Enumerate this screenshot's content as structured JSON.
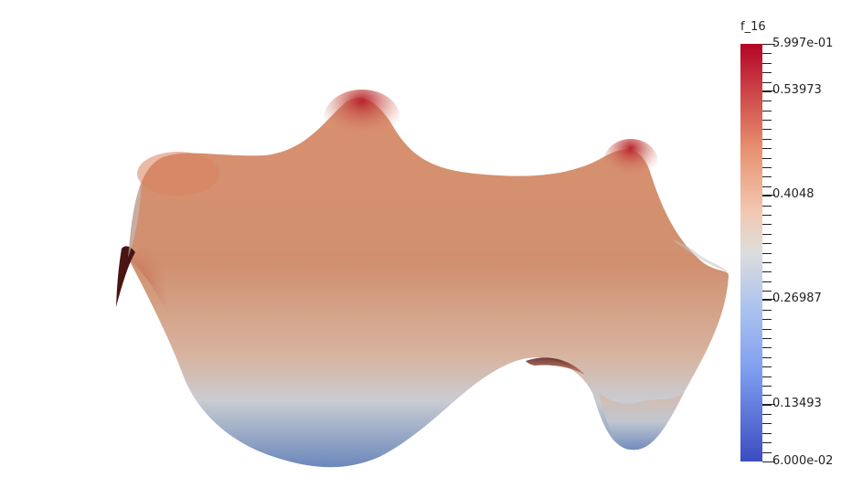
{
  "viewer": {
    "background": "#ffffff"
  },
  "scalar_bar": {
    "title": "f_16",
    "min": 0.06,
    "max": 0.5997,
    "labels": [
      {
        "text": "5.997e-01",
        "value": 0.5997
      },
      {
        "text": "0.53973",
        "value": 0.53973
      },
      {
        "text": "0.4048",
        "value": 0.4048
      },
      {
        "text": "0.26987",
        "value": 0.26987
      },
      {
        "text": "0.13493",
        "value": 0.13493
      },
      {
        "text": "6.000e-02",
        "value": 0.06
      }
    ],
    "colormap": {
      "name": "cool-to-warm",
      "low": "#3b4cc0",
      "mid": "#dddddd",
      "high": "#b40426"
    }
  },
  "surface": {
    "field": "f_16",
    "main_color": "#d18f70",
    "peak_color": "#b8202c",
    "low_color": "#6a84b5",
    "shadow_color": "#5a1e1a"
  }
}
